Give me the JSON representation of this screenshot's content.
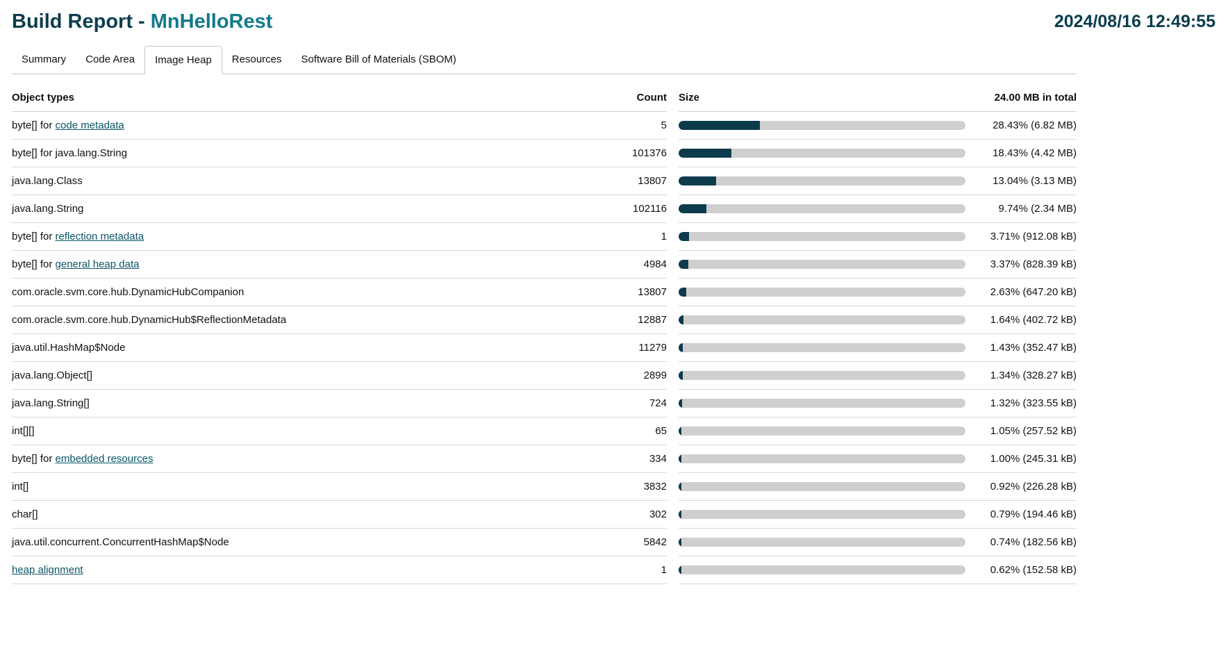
{
  "header": {
    "title_prefix": "Build Report - ",
    "app_name": "MnHelloRest",
    "timestamp": "2024/08/16 12:49:55"
  },
  "tabs": [
    {
      "label": "Summary",
      "active": false
    },
    {
      "label": "Code Area",
      "active": false
    },
    {
      "label": "Image Heap",
      "active": true
    },
    {
      "label": "Resources",
      "active": false
    },
    {
      "label": "Software Bill of Materials (SBOM)",
      "active": false
    }
  ],
  "table": {
    "headers": {
      "type": "Object types",
      "count": "Count",
      "size": "Size",
      "total": "24.00 MB in total"
    },
    "rows": [
      {
        "prefix": "byte[] for ",
        "link": "code metadata",
        "count": "5",
        "fraction": 0.2843,
        "size": "28.43% (6.82 MB)"
      },
      {
        "prefix": "byte[] for java.lang.String",
        "link": "",
        "count": "101376",
        "fraction": 0.1843,
        "size": "18.43% (4.42 MB)"
      },
      {
        "prefix": "java.lang.Class",
        "link": "",
        "count": "13807",
        "fraction": 0.1304,
        "size": "13.04% (3.13 MB)"
      },
      {
        "prefix": "java.lang.String",
        "link": "",
        "count": "102116",
        "fraction": 0.0974,
        "size": "9.74% (2.34 MB)"
      },
      {
        "prefix": "byte[] for ",
        "link": "reflection metadata",
        "count": "1",
        "fraction": 0.0371,
        "size": "3.71% (912.08 kB)"
      },
      {
        "prefix": "byte[] for ",
        "link": "general heap data",
        "count": "4984",
        "fraction": 0.0337,
        "size": "3.37% (828.39 kB)"
      },
      {
        "prefix": "com.oracle.svm.core.hub.DynamicHubCompanion",
        "link": "",
        "count": "13807",
        "fraction": 0.0263,
        "size": "2.63% (647.20 kB)"
      },
      {
        "prefix": "com.oracle.svm.core.hub.DynamicHub$ReflectionMetadata",
        "link": "",
        "count": "12887",
        "fraction": 0.0164,
        "size": "1.64% (402.72 kB)"
      },
      {
        "prefix": "java.util.HashMap$Node",
        "link": "",
        "count": "11279",
        "fraction": 0.0143,
        "size": "1.43% (352.47 kB)"
      },
      {
        "prefix": "java.lang.Object[]",
        "link": "",
        "count": "2899",
        "fraction": 0.0134,
        "size": "1.34% (328.27 kB)"
      },
      {
        "prefix": "java.lang.String[]",
        "link": "",
        "count": "724",
        "fraction": 0.0132,
        "size": "1.32% (323.55 kB)"
      },
      {
        "prefix": "int[][]",
        "link": "",
        "count": "65",
        "fraction": 0.0105,
        "size": "1.05% (257.52 kB)"
      },
      {
        "prefix": "byte[] for ",
        "link": "embedded resources",
        "count": "334",
        "fraction": 0.01,
        "size": "1.00% (245.31 kB)"
      },
      {
        "prefix": "int[]",
        "link": "",
        "count": "3832",
        "fraction": 0.0092,
        "size": "0.92% (226.28 kB)"
      },
      {
        "prefix": "char[]",
        "link": "",
        "count": "302",
        "fraction": 0.0079,
        "size": "0.79% (194.46 kB)"
      },
      {
        "prefix": "java.util.concurrent.ConcurrentHashMap$Node",
        "link": "",
        "count": "5842",
        "fraction": 0.0074,
        "size": "0.74% (182.56 kB)"
      },
      {
        "prefix": "",
        "link": "heap alignment",
        "count": "1",
        "fraction": 0.0062,
        "size": "0.62% (152.58 kB)"
      }
    ]
  },
  "colors": {
    "title": "#0b3d4f",
    "app_name": "#117a8b",
    "bar_fill": "#0d3b4c",
    "bar_track": "#cfcfcf",
    "link": "#0b5566"
  }
}
